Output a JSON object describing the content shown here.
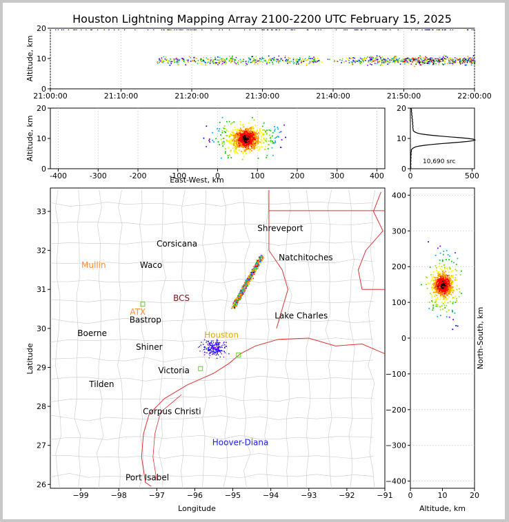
{
  "title": "Houston Lightning Mapping Array 2100-2200 UTC February 15, 2025",
  "chart_data": [
    {
      "id": "time-height",
      "type": "scatter",
      "xlabel": "",
      "ylabel": "Altitude, km",
      "xticks": [
        "21:00:00",
        "21:10:00",
        "21:20:00",
        "21:30:00",
        "21:40:00",
        "21:50:00",
        "22:00:00"
      ],
      "xlim_minutes": [
        0,
        60
      ],
      "ylim": [
        0,
        20
      ],
      "yticks": [
        0,
        10,
        20
      ],
      "activity_start_minute": 15,
      "typical_altitude_km": 9.5
    },
    {
      "id": "ew-altitude",
      "type": "scatter",
      "xlabel": "East-West, km",
      "ylabel": "Altitude, km",
      "xlim": [
        -420,
        420
      ],
      "ylim": [
        0,
        20
      ],
      "xticks": [
        -400,
        -300,
        -200,
        -100,
        0,
        100,
        200,
        300,
        400
      ],
      "yticks": [
        0,
        10,
        20
      ],
      "cluster_center_km": 70
    },
    {
      "id": "altitude-histogram",
      "type": "line",
      "xlim": [
        0,
        520
      ],
      "ylim": [
        0,
        20
      ],
      "xticks": [
        0,
        500
      ],
      "yticks": [
        0,
        10,
        20
      ],
      "annotation": "10,690 src",
      "peak_altitude_km": 9.5,
      "peak_count": 510
    },
    {
      "id": "plan-view-map",
      "type": "scatter",
      "xlabel": "Longitude",
      "ylabel": "Latitude",
      "xlim": [
        -99.8,
        -91
      ],
      "ylim": [
        25.9,
        33.6
      ],
      "xticks": [
        -99,
        -98,
        -97,
        -96,
        -95,
        -94,
        -93,
        -92,
        -91
      ],
      "yticks": [
        26,
        27,
        28,
        29,
        30,
        31,
        32,
        33
      ],
      "places": [
        {
          "name": "Shreveport",
          "lon": -93.75,
          "lat": 32.5,
          "color": "#000000"
        },
        {
          "name": "Corsicana",
          "lon": -96.47,
          "lat": 32.1,
          "color": "#000000"
        },
        {
          "name": "Mullin",
          "lon": -98.66,
          "lat": 31.55,
          "color": "#ff8c3c"
        },
        {
          "name": "Waco",
          "lon": -97.15,
          "lat": 31.55,
          "color": "#000000"
        },
        {
          "name": "Natchitoches",
          "lon": -93.08,
          "lat": 31.75,
          "color": "#000000"
        },
        {
          "name": "BCS",
          "lon": -96.35,
          "lat": 30.7,
          "color": "#7b1416"
        },
        {
          "name": "ATX",
          "lon": -97.5,
          "lat": 30.35,
          "color": "#ff8c3c"
        },
        {
          "name": "Bastrop",
          "lon": -97.3,
          "lat": 30.15,
          "color": "#000000"
        },
        {
          "name": "Lake Charles",
          "lon": -93.2,
          "lat": 30.25,
          "color": "#000000"
        },
        {
          "name": "Boerne",
          "lon": -98.7,
          "lat": 29.8,
          "color": "#000000"
        },
        {
          "name": "Houston",
          "lon": -95.3,
          "lat": 29.76,
          "color": "#e8a800"
        },
        {
          "name": "Shiner",
          "lon": -97.2,
          "lat": 29.45,
          "color": "#000000"
        },
        {
          "name": "Victoria",
          "lon": -96.55,
          "lat": 28.85,
          "color": "#000000"
        },
        {
          "name": "Tilden",
          "lon": -98.45,
          "lat": 28.5,
          "color": "#000000"
        },
        {
          "name": "Corpus Christi",
          "lon": -96.6,
          "lat": 27.8,
          "color": "#000000"
        },
        {
          "name": "Hoover-Diana",
          "lon": -94.8,
          "lat": 27.0,
          "color": "#1a1aff"
        },
        {
          "name": "Port Isabel",
          "lon": -97.25,
          "lat": 26.1,
          "color": "#000000"
        }
      ]
    },
    {
      "id": "altitude-ns",
      "type": "scatter",
      "xlabel": "Altitude, km",
      "ylabel": "North-South, km",
      "xlim": [
        0,
        20
      ],
      "ylim": [
        -420,
        420
      ],
      "xticks": [
        0,
        10,
        20
      ],
      "yticks": [
        -400,
        -300,
        -200,
        -100,
        0,
        100,
        200,
        300,
        400
      ],
      "cluster_center_km": 150
    }
  ]
}
